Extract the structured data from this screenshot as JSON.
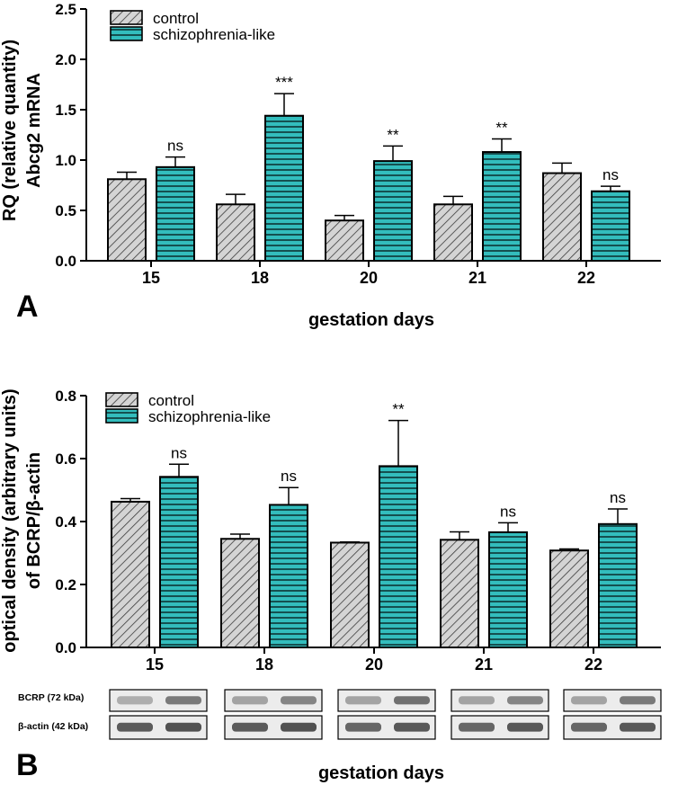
{
  "colors": {
    "control": "#d4d4d4",
    "schizo": "#33bdbd",
    "stroke": "#000000"
  },
  "panels": [
    {
      "letter": "A",
      "xlabel": "gestation days"
    },
    {
      "letter": "B",
      "xlabel": "gestation days"
    }
  ],
  "blots": {
    "rows": [
      {
        "label": "BCRP (72 kDa)"
      },
      {
        "label": "β-actin (42 kDa)"
      }
    ]
  },
  "chart_data": [
    {
      "type": "bar",
      "panel": "A",
      "categories": [
        "15",
        "18",
        "20",
        "21",
        "22"
      ],
      "series": [
        {
          "name": "control",
          "values": [
            0.81,
            0.56,
            0.4,
            0.56,
            0.87
          ],
          "errors": [
            0.07,
            0.1,
            0.05,
            0.08,
            0.1
          ]
        },
        {
          "name": "schizophrenia-like",
          "values": [
            0.93,
            1.44,
            0.99,
            1.08,
            0.69
          ],
          "errors": [
            0.1,
            0.22,
            0.15,
            0.13,
            0.05
          ]
        }
      ],
      "annotations": [
        "ns",
        "***",
        "**",
        "**",
        "ns"
      ],
      "ylabel": [
        "RQ (relative quantity)",
        "Abcg2 mRNA"
      ],
      "xlabel": "gestation days",
      "ylim": [
        0,
        2.5
      ],
      "yticks": [
        "0.0",
        "0.5",
        "1.0",
        "1.5",
        "2.0",
        "2.5"
      ],
      "legend": "top-left",
      "grid": false
    },
    {
      "type": "bar",
      "panel": "B",
      "categories": [
        "15",
        "18",
        "20",
        "21",
        "22"
      ],
      "series": [
        {
          "name": "control",
          "values": [
            0.463,
            0.345,
            0.333,
            0.342,
            0.308
          ],
          "errors": [
            0.01,
            0.015,
            0.002,
            0.025,
            0.005
          ]
        },
        {
          "name": "schizophrenia-like",
          "values": [
            0.542,
            0.453,
            0.576,
            0.366,
            0.392
          ],
          "errors": [
            0.04,
            0.055,
            0.145,
            0.03,
            0.048
          ]
        }
      ],
      "annotations": [
        "ns",
        "ns",
        "**",
        "ns",
        "ns"
      ],
      "ylabel": [
        "optical density (arbitrary units)",
        "of BCRP/β-actin"
      ],
      "xlabel": "gestation days",
      "ylim": [
        0,
        0.8
      ],
      "yticks": [
        "0.0",
        "0.2",
        "0.4",
        "0.6",
        "0.8"
      ],
      "legend": "top-left",
      "grid": false
    }
  ]
}
